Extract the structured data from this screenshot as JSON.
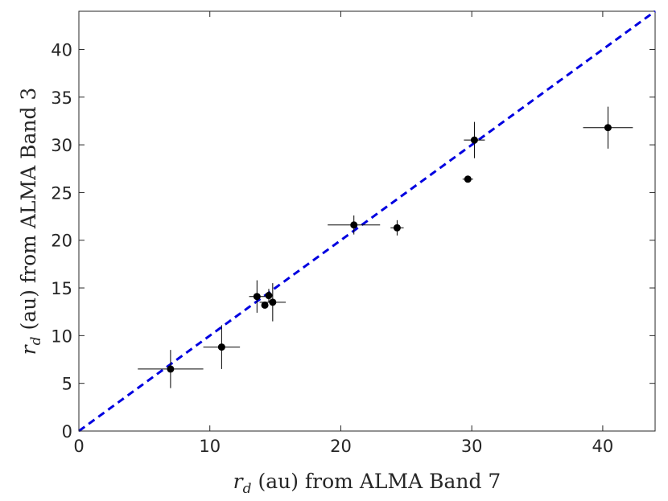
{
  "chart_data": {
    "type": "scatter",
    "title": "",
    "xlabel": {
      "var": "r",
      "sub": "d",
      "text": " (au) from ALMA Band 7"
    },
    "ylabel": {
      "var": "r",
      "sub": "d",
      "text": " (au) from ALMA Band 3"
    },
    "xlim": [
      0,
      44
    ],
    "ylim": [
      0,
      44
    ],
    "xticks": [
      0,
      10,
      20,
      30,
      40
    ],
    "yticks": [
      0,
      5,
      10,
      15,
      20,
      25,
      30,
      35,
      40
    ],
    "grid": false,
    "legend": "none",
    "reference_line": {
      "type": "y=x",
      "style": "dashed",
      "color": "#0000e0"
    },
    "marker_color": "#000000",
    "points": [
      {
        "x": 7.0,
        "y": 6.5,
        "xerr": 2.5,
        "yerr": 2.0
      },
      {
        "x": 10.9,
        "y": 8.8,
        "xerr": 1.4,
        "yerr": 2.3
      },
      {
        "x": 13.6,
        "y": 14.1,
        "xerr": 0.6,
        "yerr": 1.7
      },
      {
        "x": 14.2,
        "y": 13.2,
        "xerr": 0.0,
        "yerr": 0.0
      },
      {
        "x": 14.5,
        "y": 14.2,
        "xerr": 0.0,
        "yerr": 0.7
      },
      {
        "x": 14.8,
        "y": 13.5,
        "xerr": 1.0,
        "yerr": 2.0
      },
      {
        "x": 21.0,
        "y": 21.6,
        "xerr": 2.0,
        "yerr": 1.0
      },
      {
        "x": 24.3,
        "y": 21.3,
        "xerr": 0.5,
        "yerr": 0.8
      },
      {
        "x": 29.7,
        "y": 26.4,
        "xerr": 0.4,
        "yerr": 0.0
      },
      {
        "x": 30.2,
        "y": 30.5,
        "xerr": 0.8,
        "yerr": 1.9
      },
      {
        "x": 40.4,
        "y": 31.8,
        "xerr": 1.9,
        "yerr": 2.2
      }
    ]
  }
}
